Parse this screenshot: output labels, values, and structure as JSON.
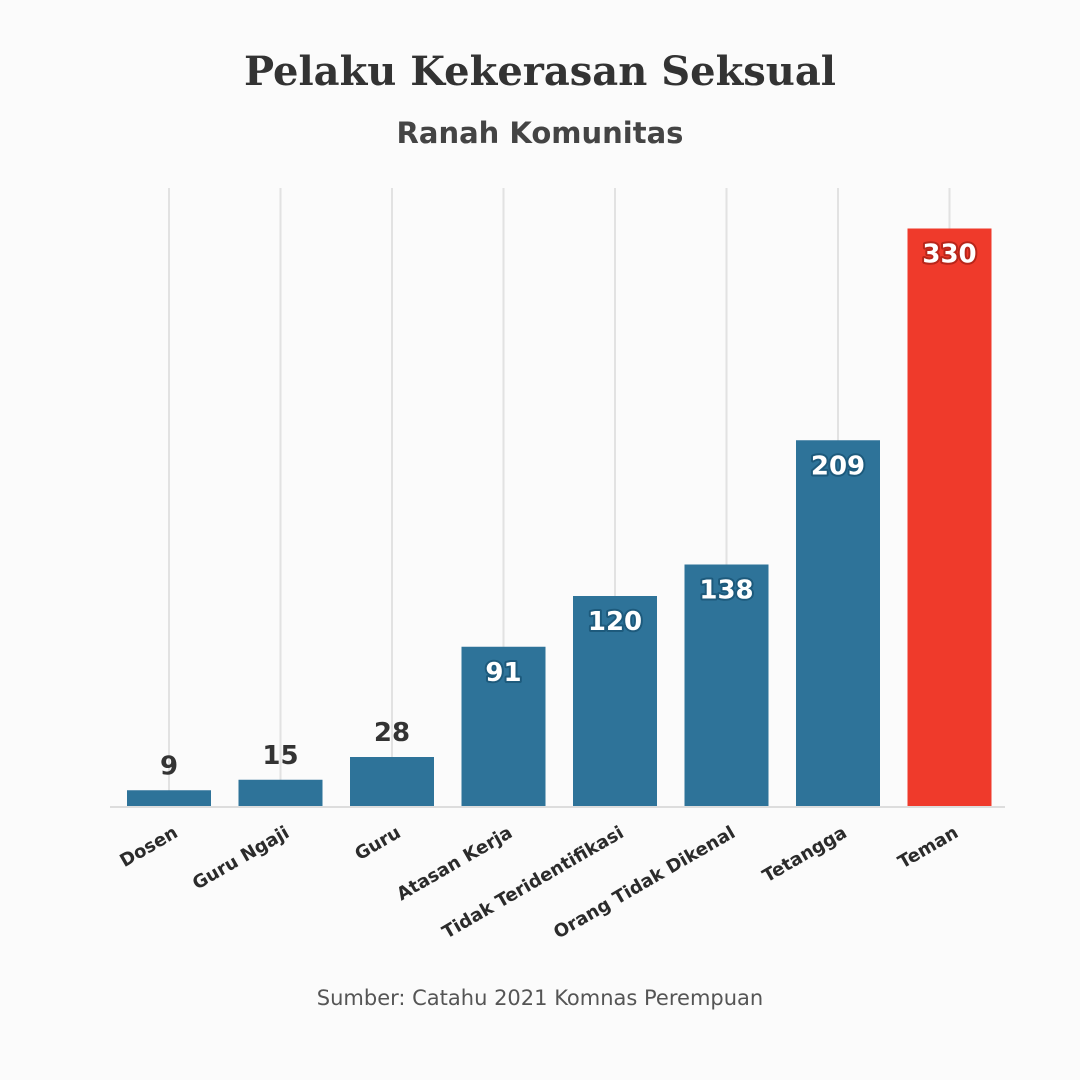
{
  "title": "Pelaku Kekerasan Seksual",
  "subtitle": "Ranah Komunitas",
  "source": "Sumber: Catahu 2021 Komnas Perempuan",
  "colors": {
    "bar": "#2e7399",
    "highlight": "#ef3a2b",
    "grid": "#e2e2e2",
    "axis": "#dddddd",
    "label_dark": "#333333",
    "label_light": "#ffffff",
    "label_shadow_blue": "#1d5a7c",
    "label_shadow_red": "#b8261a"
  },
  "chart_data": {
    "type": "bar",
    "title": "Pelaku Kekerasan Seksual",
    "subtitle": "Ranah Komunitas",
    "categories": [
      "Dosen",
      "Guru Ngaji",
      "Guru",
      "Atasan Kerja",
      "Tidak Teridentifikasi",
      "Orang Tidak Dikenal",
      "Tetangga",
      "Teman"
    ],
    "values": [
      9,
      15,
      28,
      91,
      120,
      138,
      209,
      330
    ],
    "highlight": "Teman",
    "ylim": [
      0,
      340
    ],
    "grid": "vertical",
    "data_labels": true
  }
}
